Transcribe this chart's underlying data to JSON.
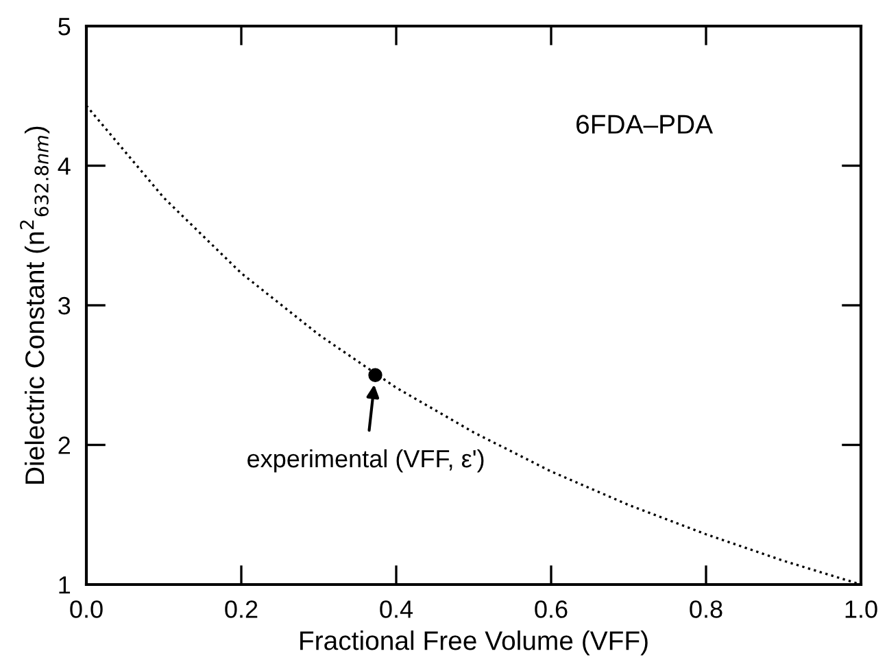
{
  "chart_data": {
    "type": "line",
    "xlabel": "Fractional Free Volume (VFF)",
    "ylabel": "Dielectric Constant (n$^{2}$$_{632.8nm}$)",
    "xlim": [
      0,
      1
    ],
    "ylim": [
      1,
      5
    ],
    "xticks": [
      {
        "value": 0,
        "label": "0.0"
      },
      0.2,
      0.4,
      0.6,
      0.8,
      {
        "value": 1,
        "label": "1.0"
      }
    ],
    "yticks": [
      1,
      2,
      3,
      4,
      5
    ],
    "grid": false,
    "legend": false,
    "series": [
      {
        "color": "#000000",
        "line_style": "dotted",
        "marker": "none",
        "x": [
          0,
          0.1,
          0.2,
          0.3,
          0.4,
          0.5,
          0.6,
          0.7,
          0.8,
          0.9,
          1.0
        ],
        "values": [
          4.43,
          3.77,
          3.23,
          2.79,
          2.41,
          2.09,
          1.81,
          1.57,
          1.36,
          1.17,
          1.0
        ]
      },
      {
        "type": "scatter",
        "color": "#000000",
        "marker": "circle",
        "x": [
          0.373
        ],
        "values": [
          2.5
        ]
      }
    ],
    "annotations": [
      "6FDA–PDA",
      {
        "text": "experimental (VFF, ε')",
        "x": 0.373,
        "y": 2.5
      }
    ]
  }
}
